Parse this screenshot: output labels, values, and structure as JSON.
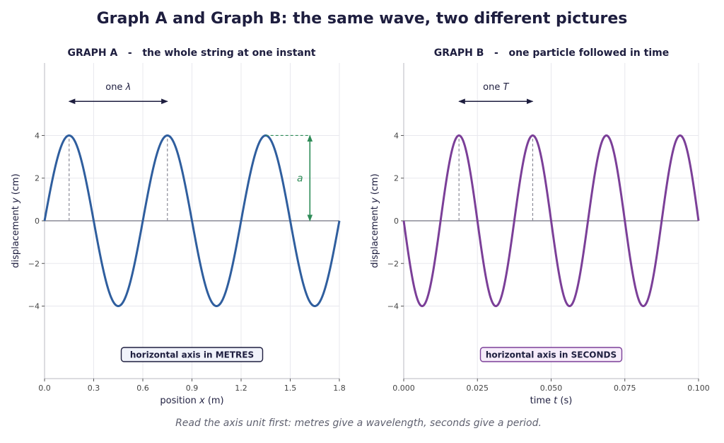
{
  "figure": {
    "title": "Graph A and Graph B: the same wave, two different pictures",
    "footnote": "Read the axis unit first: metres give a wavelength, seconds give a period."
  },
  "chart_data": [
    {
      "type": "line",
      "title": "GRAPH A   -   the whole string at one instant",
      "xlabel_prefix": "position",
      "xlabel_var": "x",
      "xlabel_unit": "(m)",
      "ylabel_prefix": "displacement",
      "ylabel_var": "y",
      "ylabel_unit": "(cm)",
      "xlim": [
        0,
        1.8
      ],
      "ylim": [
        -7.4,
        7.4
      ],
      "xticks": [
        0.0,
        0.3,
        0.6,
        0.9,
        1.2,
        1.5,
        1.8
      ],
      "xtick_labels": [
        "0.0",
        "0.3",
        "0.6",
        "0.9",
        "1.2",
        "1.5",
        "1.8"
      ],
      "yticks": [
        -4,
        -2,
        0,
        2,
        4
      ],
      "ytick_labels": [
        "−4",
        "−2",
        "0",
        "2",
        "4"
      ],
      "grid": true,
      "color": "#2f5e9e",
      "series": [
        {
          "function": "y = 4 sin(2π x / 0.6)",
          "amplitude": 4,
          "wavelength": 0.6,
          "phase_sign": 1,
          "x_range": [
            0,
            1.8
          ]
        }
      ],
      "annotations": {
        "span_label_prefix": "one",
        "span_label_symbol": "λ",
        "span_x": [
          0.15,
          0.75
        ],
        "span_y": 5.6,
        "peak_markers": [
          0.15,
          0.75
        ],
        "amplitude_label": "a",
        "amplitude_arrow_x": 1.62,
        "amplitude_from_peak_x": 1.35,
        "amplitude_color": "#2e8b57",
        "axis_note": "horizontal axis in METRES",
        "axis_note_border": "#1e1e3f",
        "axis_note_fill": "#f0f2fa"
      }
    },
    {
      "type": "line",
      "title": "GRAPH B   -   one particle followed in time",
      "xlabel_prefix": "time",
      "xlabel_var": "t",
      "xlabel_unit": "(s)",
      "ylabel_prefix": "displacement",
      "ylabel_var": "y",
      "ylabel_unit": "(cm)",
      "xlim": [
        0,
        0.1
      ],
      "ylim": [
        -7.4,
        7.4
      ],
      "xticks": [
        0,
        0.025,
        0.05,
        0.075,
        0.1
      ],
      "xtick_labels": [
        "0.000",
        "0.025",
        "0.050",
        "0.075",
        "0.100"
      ],
      "yticks": [
        -4,
        -2,
        0,
        2,
        4
      ],
      "ytick_labels": [
        "−4",
        "−2",
        "0",
        "2",
        "4"
      ],
      "grid": true,
      "color": "#7b3f98",
      "series": [
        {
          "function": "y = -4 sin(2π t / 0.025)",
          "amplitude": 4,
          "period": 0.025,
          "phase_sign": -1,
          "x_range": [
            0,
            0.1
          ]
        }
      ],
      "annotations": {
        "span_label_prefix": "one",
        "span_label_symbol": "T",
        "span_x": [
          0.01875,
          0.04375
        ],
        "span_y": 5.6,
        "peak_markers": [
          0.01875,
          0.04375
        ],
        "axis_note": "horizontal axis in SECONDS",
        "axis_note_border": "#7b3f98",
        "axis_note_fill": "#f6ecfa"
      }
    }
  ]
}
